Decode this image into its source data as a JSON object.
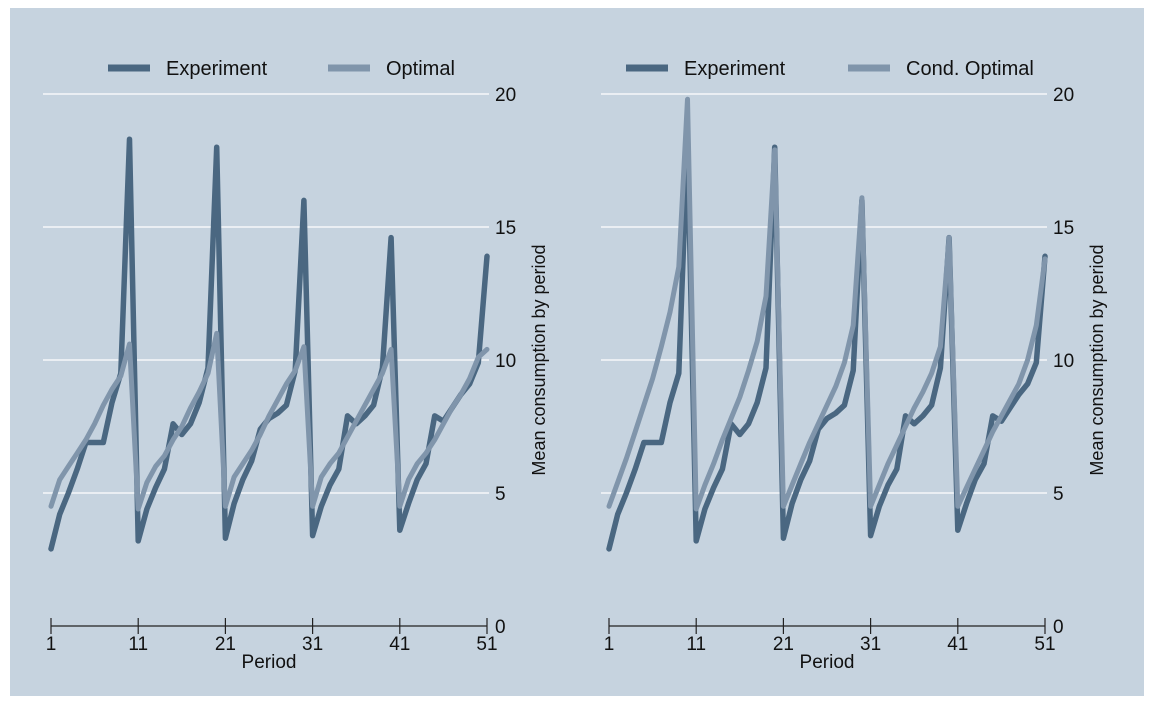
{
  "chart_data": [
    {
      "type": "line",
      "xlabel": "Period",
      "ylabel": "Mean consumption by period",
      "xlim": [
        1,
        51
      ],
      "ylim": [
        0,
        20
      ],
      "x_ticks": [
        "1",
        "11",
        "21",
        "31",
        "41",
        "51"
      ],
      "y_ticks": [
        "0",
        "5",
        "10",
        "15",
        "20"
      ],
      "grid": "horizontal",
      "y_axis_side": "right",
      "legend_position": "top",
      "series": [
        {
          "name": "Experiment",
          "color": "#4a6781",
          "x": [
            1,
            2,
            3,
            4,
            5,
            6,
            7,
            8,
            9,
            10,
            11,
            12,
            13,
            14,
            15,
            16,
            17,
            18,
            19,
            20,
            21,
            22,
            23,
            24,
            25,
            26,
            27,
            28,
            29,
            30,
            31,
            32,
            33,
            34,
            35,
            36,
            37,
            38,
            39,
            40,
            41,
            42,
            43,
            44,
            45,
            46,
            47,
            48,
            49,
            50,
            51
          ],
          "y": [
            2.9,
            4.2,
            5.0,
            5.9,
            6.9,
            6.9,
            6.9,
            8.4,
            9.5,
            18.3,
            3.2,
            4.4,
            5.2,
            5.9,
            7.6,
            7.2,
            7.6,
            8.4,
            9.7,
            18.0,
            3.3,
            4.6,
            5.5,
            6.2,
            7.4,
            7.8,
            8.0,
            8.3,
            9.6,
            16.0,
            3.4,
            4.5,
            5.3,
            5.9,
            7.9,
            7.6,
            7.9,
            8.3,
            9.7,
            14.6,
            3.6,
            4.6,
            5.5,
            6.1,
            7.9,
            7.7,
            8.2,
            8.7,
            9.1,
            9.9,
            13.9
          ]
        },
        {
          "name": "Optimal",
          "color": "#8095ab",
          "x": [
            1,
            2,
            3,
            4,
            5,
            6,
            7,
            8,
            9,
            10,
            11,
            12,
            13,
            14,
            15,
            16,
            17,
            18,
            19,
            20,
            21,
            22,
            23,
            24,
            25,
            26,
            27,
            28,
            29,
            30,
            31,
            32,
            33,
            34,
            35,
            36,
            37,
            38,
            39,
            40,
            41,
            42,
            43,
            44,
            45,
            46,
            47,
            48,
            49,
            50,
            51
          ],
          "y": [
            4.5,
            5.5,
            6.0,
            6.5,
            7.0,
            7.6,
            8.3,
            8.9,
            9.4,
            10.6,
            4.4,
            5.4,
            6.0,
            6.4,
            7.0,
            7.5,
            8.2,
            8.8,
            9.5,
            11.0,
            4.5,
            5.6,
            6.1,
            6.6,
            7.2,
            7.9,
            8.5,
            9.1,
            9.6,
            10.5,
            4.5,
            5.6,
            6.1,
            6.5,
            7.1,
            7.7,
            8.3,
            8.9,
            9.5,
            10.4,
            4.5,
            5.5,
            6.1,
            6.5,
            7.0,
            7.6,
            8.2,
            8.7,
            9.3,
            10.1,
            10.4
          ]
        }
      ]
    },
    {
      "type": "line",
      "xlabel": "Period",
      "ylabel": "Mean consumption by period",
      "xlim": [
        1,
        51
      ],
      "ylim": [
        0,
        20
      ],
      "x_ticks": [
        "1",
        "11",
        "21",
        "31",
        "41",
        "51"
      ],
      "y_ticks": [
        "0",
        "5",
        "10",
        "15",
        "20"
      ],
      "grid": "horizontal",
      "y_axis_side": "right",
      "legend_position": "top",
      "series": [
        {
          "name": "Experiment",
          "color": "#4a6781",
          "x": [
            1,
            2,
            3,
            4,
            5,
            6,
            7,
            8,
            9,
            10,
            11,
            12,
            13,
            14,
            15,
            16,
            17,
            18,
            19,
            20,
            21,
            22,
            23,
            24,
            25,
            26,
            27,
            28,
            29,
            30,
            31,
            32,
            33,
            34,
            35,
            36,
            37,
            38,
            39,
            40,
            41,
            42,
            43,
            44,
            45,
            46,
            47,
            48,
            49,
            50,
            51
          ],
          "y": [
            2.9,
            4.2,
            5.0,
            5.9,
            6.9,
            6.9,
            6.9,
            8.4,
            9.5,
            18.3,
            3.2,
            4.4,
            5.2,
            5.9,
            7.6,
            7.2,
            7.6,
            8.4,
            9.7,
            18.0,
            3.3,
            4.6,
            5.5,
            6.2,
            7.4,
            7.8,
            8.0,
            8.3,
            9.6,
            16.0,
            3.4,
            4.5,
            5.3,
            5.9,
            7.9,
            7.6,
            7.9,
            8.3,
            9.7,
            14.6,
            3.6,
            4.6,
            5.5,
            6.1,
            7.9,
            7.7,
            8.2,
            8.7,
            9.1,
            9.9,
            13.9
          ]
        },
        {
          "name": "Cond. Optimal",
          "color": "#8095ab",
          "x": [
            1,
            2,
            3,
            4,
            5,
            6,
            7,
            8,
            9,
            10,
            11,
            12,
            13,
            14,
            15,
            16,
            17,
            18,
            19,
            20,
            21,
            22,
            23,
            24,
            25,
            26,
            27,
            28,
            29,
            30,
            31,
            32,
            33,
            34,
            35,
            36,
            37,
            38,
            39,
            40,
            41,
            42,
            43,
            44,
            45,
            46,
            47,
            48,
            49,
            50,
            51
          ],
          "y": [
            4.5,
            5.4,
            6.3,
            7.3,
            8.3,
            9.3,
            10.5,
            11.8,
            13.5,
            19.8,
            4.4,
            5.3,
            6.1,
            7.0,
            7.8,
            8.6,
            9.6,
            10.7,
            12.4,
            17.9,
            4.5,
            5.3,
            6.1,
            6.9,
            7.6,
            8.3,
            9.0,
            9.9,
            11.3,
            16.1,
            4.5,
            5.3,
            6.1,
            6.8,
            7.5,
            8.2,
            8.8,
            9.5,
            10.5,
            14.6,
            4.5,
            5.2,
            5.9,
            6.6,
            7.3,
            7.9,
            8.5,
            9.1,
            10.0,
            11.3,
            13.8
          ]
        }
      ]
    }
  ]
}
